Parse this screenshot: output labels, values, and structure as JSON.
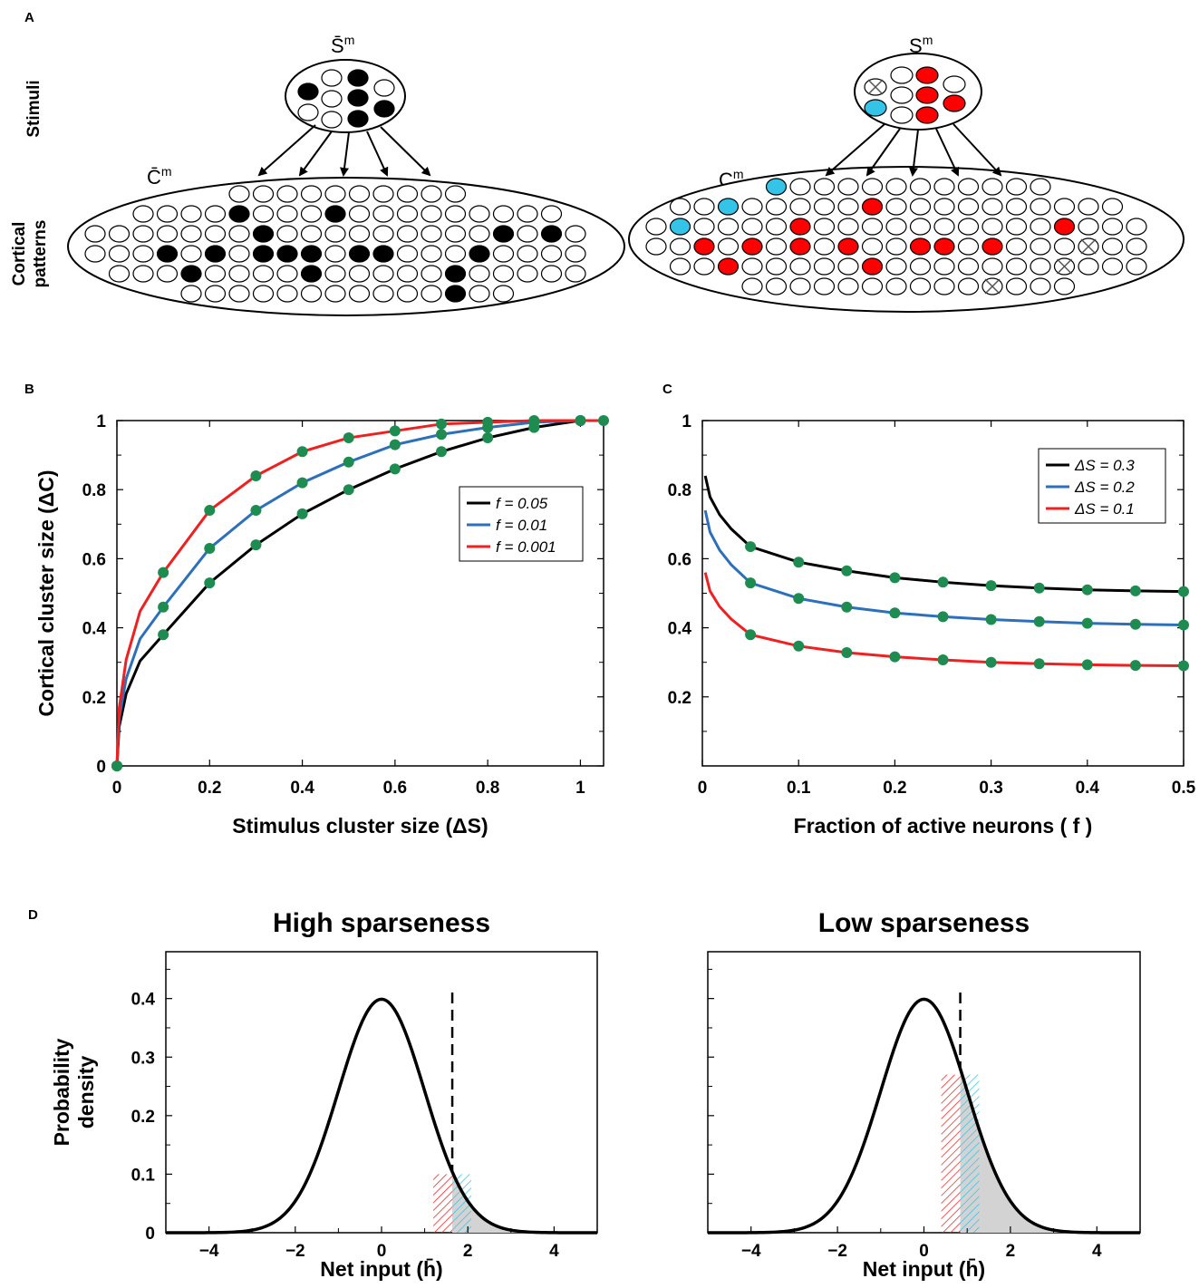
{
  "panels": {
    "A": "A",
    "B": "B",
    "C": "C",
    "D": "D"
  },
  "panel_a": {
    "row_labels": {
      "stimuli": "Stimuli",
      "cortical_line1": "Cortical",
      "cortical_line2": "patterns"
    },
    "left_stim_label": "S̄",
    "left_cortex_label": "C̄",
    "right_stim_label": "S",
    "right_cortex_label": "C",
    "superscript": "m",
    "colors": {
      "active": "#000000",
      "changed": "#ff0000",
      "new": "#33c4e8",
      "removed_mark": "#555555"
    }
  },
  "chart_data": [
    {
      "id": "B",
      "type": "line",
      "xlabel": "Stimulus cluster size (ΔS)",
      "ylabel": "Cortical cluster size (ΔC)",
      "xlim": [
        0,
        1.05
      ],
      "ylim": [
        0,
        1
      ],
      "xticks": [
        "0",
        "0.2",
        "0.4",
        "0.6",
        "0.8",
        "1"
      ],
      "yticks": [
        "0",
        "0.2",
        "0.4",
        "0.6",
        "0.8",
        "1"
      ],
      "legend_position": "right",
      "marker_color": "#1e8c50",
      "x": [
        0,
        0.1,
        0.2,
        0.3,
        0.4,
        0.5,
        0.6,
        0.7,
        0.8,
        0.9,
        1.0
      ],
      "series": [
        {
          "name": "f = 0.05",
          "color": "#000000",
          "values": [
            0,
            0.38,
            0.53,
            0.64,
            0.73,
            0.8,
            0.86,
            0.91,
            0.95,
            0.98,
            1.0
          ]
        },
        {
          "name": "f = 0.01",
          "color": "#2c6fba",
          "values": [
            0,
            0.46,
            0.63,
            0.74,
            0.82,
            0.88,
            0.93,
            0.96,
            0.98,
            0.995,
            1.0
          ]
        },
        {
          "name": "f = 0.001",
          "color": "#ee2020",
          "values": [
            0,
            0.56,
            0.74,
            0.84,
            0.91,
            0.95,
            0.97,
            0.99,
            0.995,
            1.0,
            1.0
          ]
        }
      ]
    },
    {
      "id": "C",
      "type": "line",
      "xlabel": "Fraction of active neurons ( f )",
      "ylabel": "",
      "xlim": [
        0,
        0.5
      ],
      "ylim": [
        0,
        1
      ],
      "xticks": [
        "0",
        "0.1",
        "0.2",
        "0.3",
        "0.4",
        "0.5"
      ],
      "yticks": [
        "0.2",
        "0.4",
        "0.6",
        "0.8",
        "1"
      ],
      "legend_position": "top-right",
      "marker_color": "#1e8c50",
      "x": [
        0.05,
        0.1,
        0.15,
        0.2,
        0.25,
        0.3,
        0.35,
        0.4,
        0.45,
        0.5
      ],
      "series": [
        {
          "name": "ΔS = 0.3",
          "color": "#000000",
          "start": 0.84,
          "values": [
            0.635,
            0.59,
            0.565,
            0.545,
            0.532,
            0.522,
            0.515,
            0.51,
            0.507,
            0.505
          ]
        },
        {
          "name": "ΔS = 0.2",
          "color": "#2c6fba",
          "start": 0.74,
          "values": [
            0.53,
            0.485,
            0.46,
            0.443,
            0.432,
            0.424,
            0.418,
            0.413,
            0.41,
            0.408
          ]
        },
        {
          "name": "ΔS = 0.1",
          "color": "#ee2020",
          "start": 0.56,
          "values": [
            0.38,
            0.347,
            0.328,
            0.316,
            0.307,
            0.3,
            0.296,
            0.293,
            0.291,
            0.29
          ]
        }
      ]
    },
    {
      "id": "D-left",
      "type": "area",
      "title": "High sparseness",
      "xlabel": "Net input (h̄)",
      "ylabel": "Probability density",
      "xlim": [
        -5,
        5
      ],
      "ylim": [
        0,
        0.48
      ],
      "xticks": [
        "−4",
        "−2",
        "0",
        "2",
        "4"
      ],
      "yticks": [
        "0",
        "0.1",
        "0.2",
        "0.3",
        "0.4"
      ],
      "curve": "standard normal density",
      "threshold": 1.64,
      "red_band": [
        1.2,
        1.64,
        0.1
      ],
      "blue_band": [
        1.64,
        2.08,
        0.1
      ]
    },
    {
      "id": "D-right",
      "type": "area",
      "title": "Low sparseness",
      "xlabel": "Net input (h̄)",
      "ylabel": "",
      "xlim": [
        -5,
        5
      ],
      "ylim": [
        0,
        0.48
      ],
      "xticks": [
        "−4",
        "−2",
        "0",
        "2",
        "4"
      ],
      "yticks": [],
      "curve": "standard normal density",
      "threshold": 0.84,
      "red_band": [
        0.4,
        0.84,
        0.27
      ],
      "blue_band": [
        0.84,
        1.28,
        0.27
      ]
    }
  ]
}
